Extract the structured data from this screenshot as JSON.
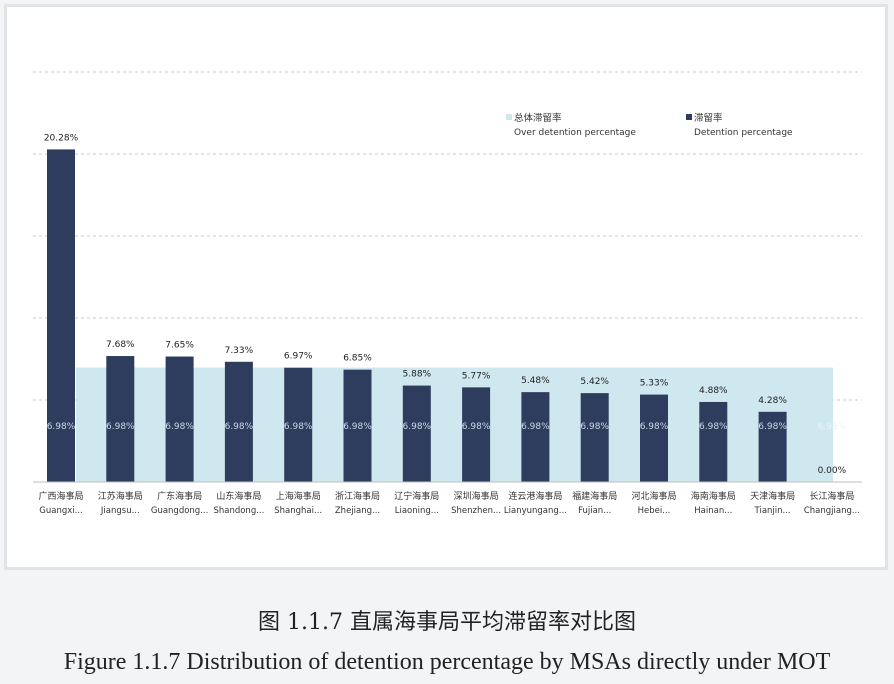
{
  "chart_data": {
    "type": "bar",
    "categories": [
      {
        "cn": "广西海事局",
        "en": "Guangxi..."
      },
      {
        "cn": "江苏海事局",
        "en": "Jiangsu..."
      },
      {
        "cn": "广东海事局",
        "en": "Guangdong..."
      },
      {
        "cn": "山东海事局",
        "en": "Shandong..."
      },
      {
        "cn": "上海海事局",
        "en": "Shanghai..."
      },
      {
        "cn": "浙江海事局",
        "en": "Zhejiang..."
      },
      {
        "cn": "辽宁海事局",
        "en": "Liaoning..."
      },
      {
        "cn": "深圳海事局",
        "en": "Shenzhen..."
      },
      {
        "cn": "连云港海事局",
        "en": "Lianyungang..."
      },
      {
        "cn": "福建海事局",
        "en": "Fujian..."
      },
      {
        "cn": "河北海事局",
        "en": "Hebei..."
      },
      {
        "cn": "海南海事局",
        "en": "Hainan..."
      },
      {
        "cn": "天津海事局",
        "en": "Tianjin..."
      },
      {
        "cn": "长江海事局",
        "en": "Changjiang..."
      }
    ],
    "series": [
      {
        "name": "总体滞留率 Over detention percentage",
        "name_cn": "总体滞留率",
        "name_en": "Over detention percentage",
        "color": "#cfe7ef",
        "values": [
          6.98,
          6.98,
          6.98,
          6.98,
          6.98,
          6.98,
          6.98,
          6.98,
          6.98,
          6.98,
          6.98,
          6.98,
          6.98,
          6.98
        ],
        "labels": [
          "6.98%",
          "6.98%",
          "6.98%",
          "6.98%",
          "6.98%",
          "6.98%",
          "6.98%",
          "6.98%",
          "6.98%",
          "6.98%",
          "6.98%",
          "6.98%",
          "6.98%",
          "6.98%"
        ]
      },
      {
        "name": "滞留率 Detention percentage",
        "name_cn": "滞留率",
        "name_en": "Detention percentage",
        "color": "#2e3d5e",
        "values": [
          20.28,
          7.68,
          7.65,
          7.33,
          6.97,
          6.85,
          5.88,
          5.77,
          5.48,
          5.42,
          5.33,
          4.88,
          4.28,
          0.0
        ],
        "labels": [
          "20.28%",
          "7.68%",
          "7.65%",
          "7.33%",
          "6.97%",
          "6.85%",
          "5.88%",
          "5.77%",
          "5.48%",
          "5.42%",
          "5.33%",
          "4.88%",
          "4.28%",
          "0.00%"
        ]
      }
    ],
    "ylim": [
      0,
      25
    ],
    "grid": true,
    "legend_position": "top-right"
  },
  "captions": {
    "cn": "图 1.1.7 直属海事局平均滞留率对比图",
    "en": "Figure 1.1.7 Distribution of detention percentage by MSAs directly under MOT"
  }
}
